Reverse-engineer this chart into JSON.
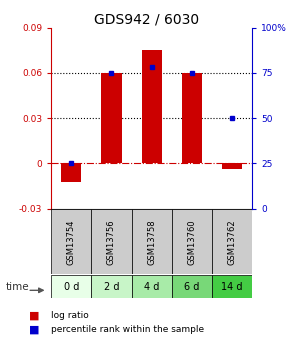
{
  "title": "GDS942 / 6030",
  "samples": [
    "GSM13754",
    "GSM13756",
    "GSM13758",
    "GSM13760",
    "GSM13762"
  ],
  "time_labels": [
    "0 d",
    "2 d",
    "4 d",
    "6 d",
    "14 d"
  ],
  "log_ratio": [
    -0.012,
    0.06,
    0.075,
    0.06,
    -0.004
  ],
  "percentile": [
    25,
    75,
    78,
    75,
    50
  ],
  "ylim_left": [
    -0.03,
    0.09
  ],
  "ylim_right": [
    0,
    100
  ],
  "yticks_left": [
    -0.03,
    0,
    0.03,
    0.06,
    0.09
  ],
  "yticks_right": [
    0,
    25,
    50,
    75,
    100
  ],
  "ytick_labels_left": [
    "-0.03",
    "0",
    "0.03",
    "0.06",
    "0.09"
  ],
  "ytick_labels_right": [
    "0",
    "25",
    "50",
    "75",
    "100%"
  ],
  "hlines_dotted": [
    0.03,
    0.06
  ],
  "hline_dashdot": 0,
  "bar_color": "#cc0000",
  "dot_color": "#0000cc",
  "bar_width": 0.5,
  "time_colors": [
    "#e8ffe8",
    "#c8f5c8",
    "#a8eba8",
    "#78d878",
    "#44cc44"
  ],
  "sample_bg_color": "#cccccc",
  "left_axis_color": "#cc0000",
  "right_axis_color": "#0000cc"
}
